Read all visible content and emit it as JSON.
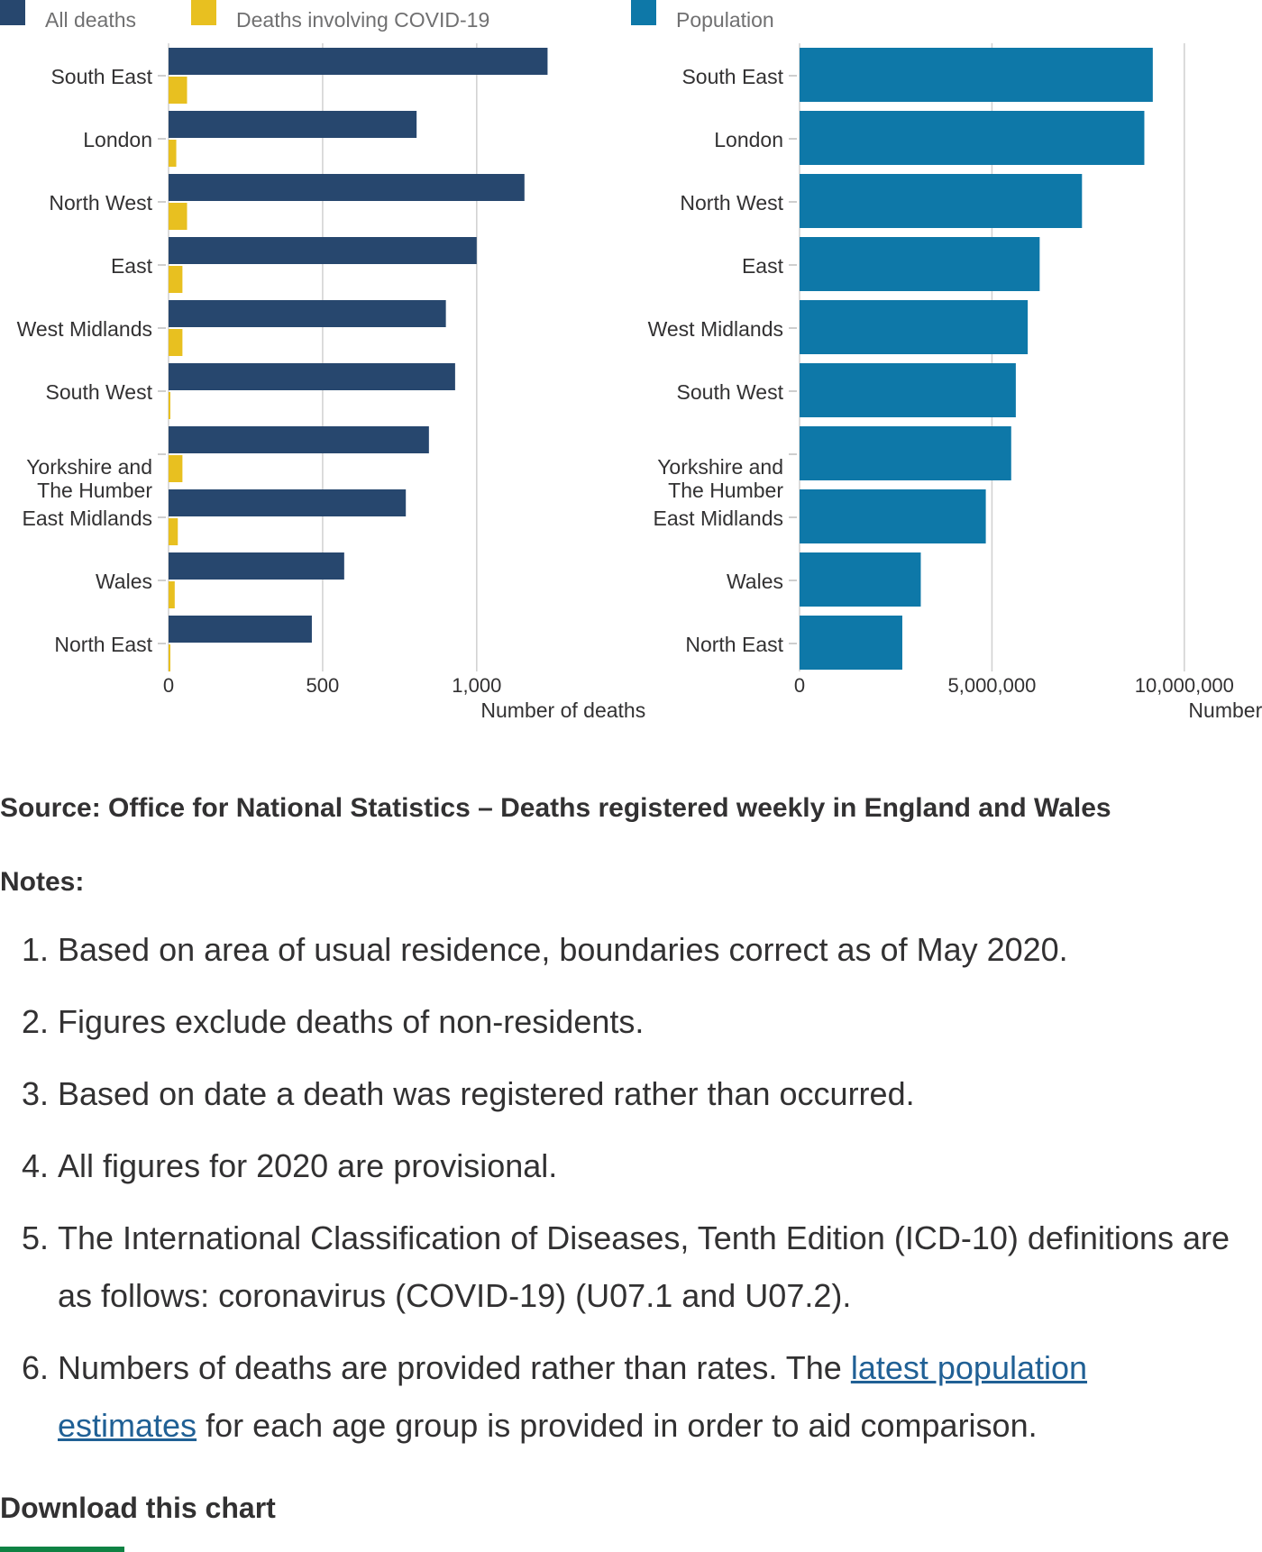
{
  "legend": {
    "all_deaths": "All deaths",
    "covid": "Deaths involving COVID-19",
    "population": "Population"
  },
  "colors": {
    "all_deaths": "#206095",
    "all_deaths_bar": "#27476e",
    "covid": "#e8c020",
    "population": "#0e78a8",
    "link": "#206095",
    "accent": "#0f8243"
  },
  "chart_data": [
    {
      "type": "bar",
      "orientation": "horizontal",
      "categories": [
        "South East",
        "London",
        "North West",
        "East",
        "West Midlands",
        "South West",
        "Yorkshire and The Humber",
        "East Midlands",
        "Wales",
        "North East"
      ],
      "category_lines": [
        [
          "South East"
        ],
        [
          "London"
        ],
        [
          "North West"
        ],
        [
          "East"
        ],
        [
          "West Midlands"
        ],
        [
          "South West"
        ],
        [
          "Yorkshire and",
          "The Humber"
        ],
        [
          "East Midlands"
        ],
        [
          "Wales"
        ],
        [
          "North East"
        ]
      ],
      "series": [
        {
          "name": "All deaths",
          "values": [
            1230,
            805,
            1155,
            1000,
            900,
            930,
            845,
            770,
            570,
            465
          ]
        },
        {
          "name": "Deaths involving COVID-19",
          "values": [
            60,
            25,
            60,
            45,
            45,
            5,
            45,
            30,
            20,
            5
          ]
        }
      ],
      "xlim": [
        0,
        1375
      ],
      "xticks": [
        0,
        500,
        1000
      ],
      "xtick_labels": [
        "0",
        "500",
        "1,000"
      ],
      "xlabel": "Number of deaths",
      "grid": true
    },
    {
      "type": "bar",
      "orientation": "horizontal",
      "categories": [
        "South East",
        "London",
        "North West",
        "East",
        "West Midlands",
        "South West",
        "Yorkshire and The Humber",
        "East Midlands",
        "Wales",
        "North East"
      ],
      "category_lines": [
        [
          "South East"
        ],
        [
          "London"
        ],
        [
          "North West"
        ],
        [
          "East"
        ],
        [
          "West Midlands"
        ],
        [
          "South West"
        ],
        [
          "Yorkshire and",
          "The Humber"
        ],
        [
          "East Midlands"
        ],
        [
          "Wales"
        ],
        [
          "North East"
        ]
      ],
      "series": [
        {
          "name": "Population",
          "values": [
            9180000,
            8960000,
            7340000,
            6240000,
            5930000,
            5620000,
            5500000,
            4840000,
            3150000,
            2670000
          ]
        }
      ],
      "xlim": [
        0,
        10800000
      ],
      "xticks": [
        0,
        5000000,
        10000000
      ],
      "xtick_labels": [
        "0",
        "5,000,000",
        "10,000,000"
      ],
      "xlabel": "Number of people",
      "grid": true
    }
  ],
  "source": "Source: Office for National Statistics – Deaths registered weekly in England and Wales",
  "notes_title": "Notes:",
  "notes": [
    {
      "text": "Based on area of usual residence, boundaries correct as of May 2020."
    },
    {
      "text": "Figures exclude deaths of non-residents."
    },
    {
      "text": "Based on date a death was registered rather than occurred."
    },
    {
      "text": "All figures for 2020 are provisional."
    },
    {
      "text": "The International Classification of Diseases, Tenth Edition (ICD-10) definitions are as follows: coronavirus (COVID-19) (U07.1 and U07.2)."
    },
    {
      "before": "Numbers of deaths are provided rather than rates. The ",
      "link": "latest population estimates",
      "after": " for each age group is provided in order to aid comparison."
    }
  ],
  "download_label": "Download this chart"
}
